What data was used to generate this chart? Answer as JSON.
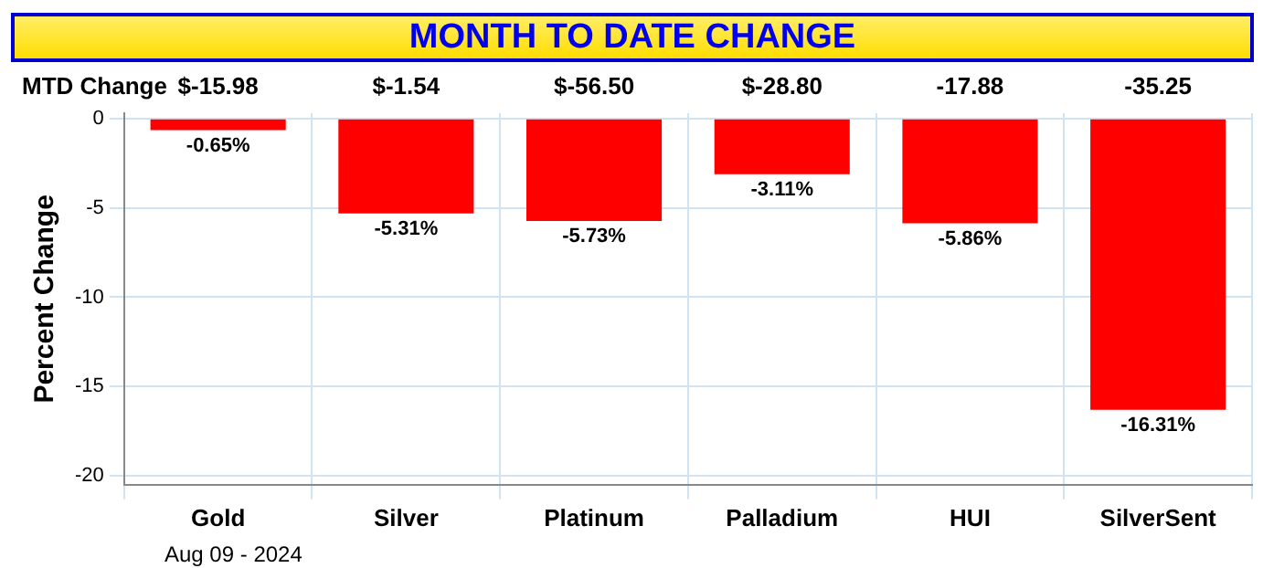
{
  "chart_data": {
    "type": "bar",
    "title": "MONTH TO DATE CHANGE",
    "ylabel": "Percent Change",
    "categories": [
      "Gold",
      "Silver",
      "Platinum",
      "Palladium",
      "HUI",
      "SilverSent"
    ],
    "values": [
      -0.65,
      -5.31,
      -5.73,
      -3.11,
      -5.86,
      -16.31
    ],
    "value_labels": [
      "-0.65%",
      "-5.31%",
      "-5.73%",
      "-3.11%",
      "-5.86%",
      "-16.31%"
    ],
    "color": "#ff0000",
    "ylim": [
      -20.5,
      0.3
    ],
    "yticks": [
      0,
      -5,
      -10,
      -15,
      -20
    ],
    "grid": true,
    "annotations": [
      "MTD Change",
      "$-15.98",
      "$-1.54",
      "$-56.50",
      "$-28.80",
      "-17.88",
      "-35.25",
      "Aug 09 - 2024"
    ]
  }
}
